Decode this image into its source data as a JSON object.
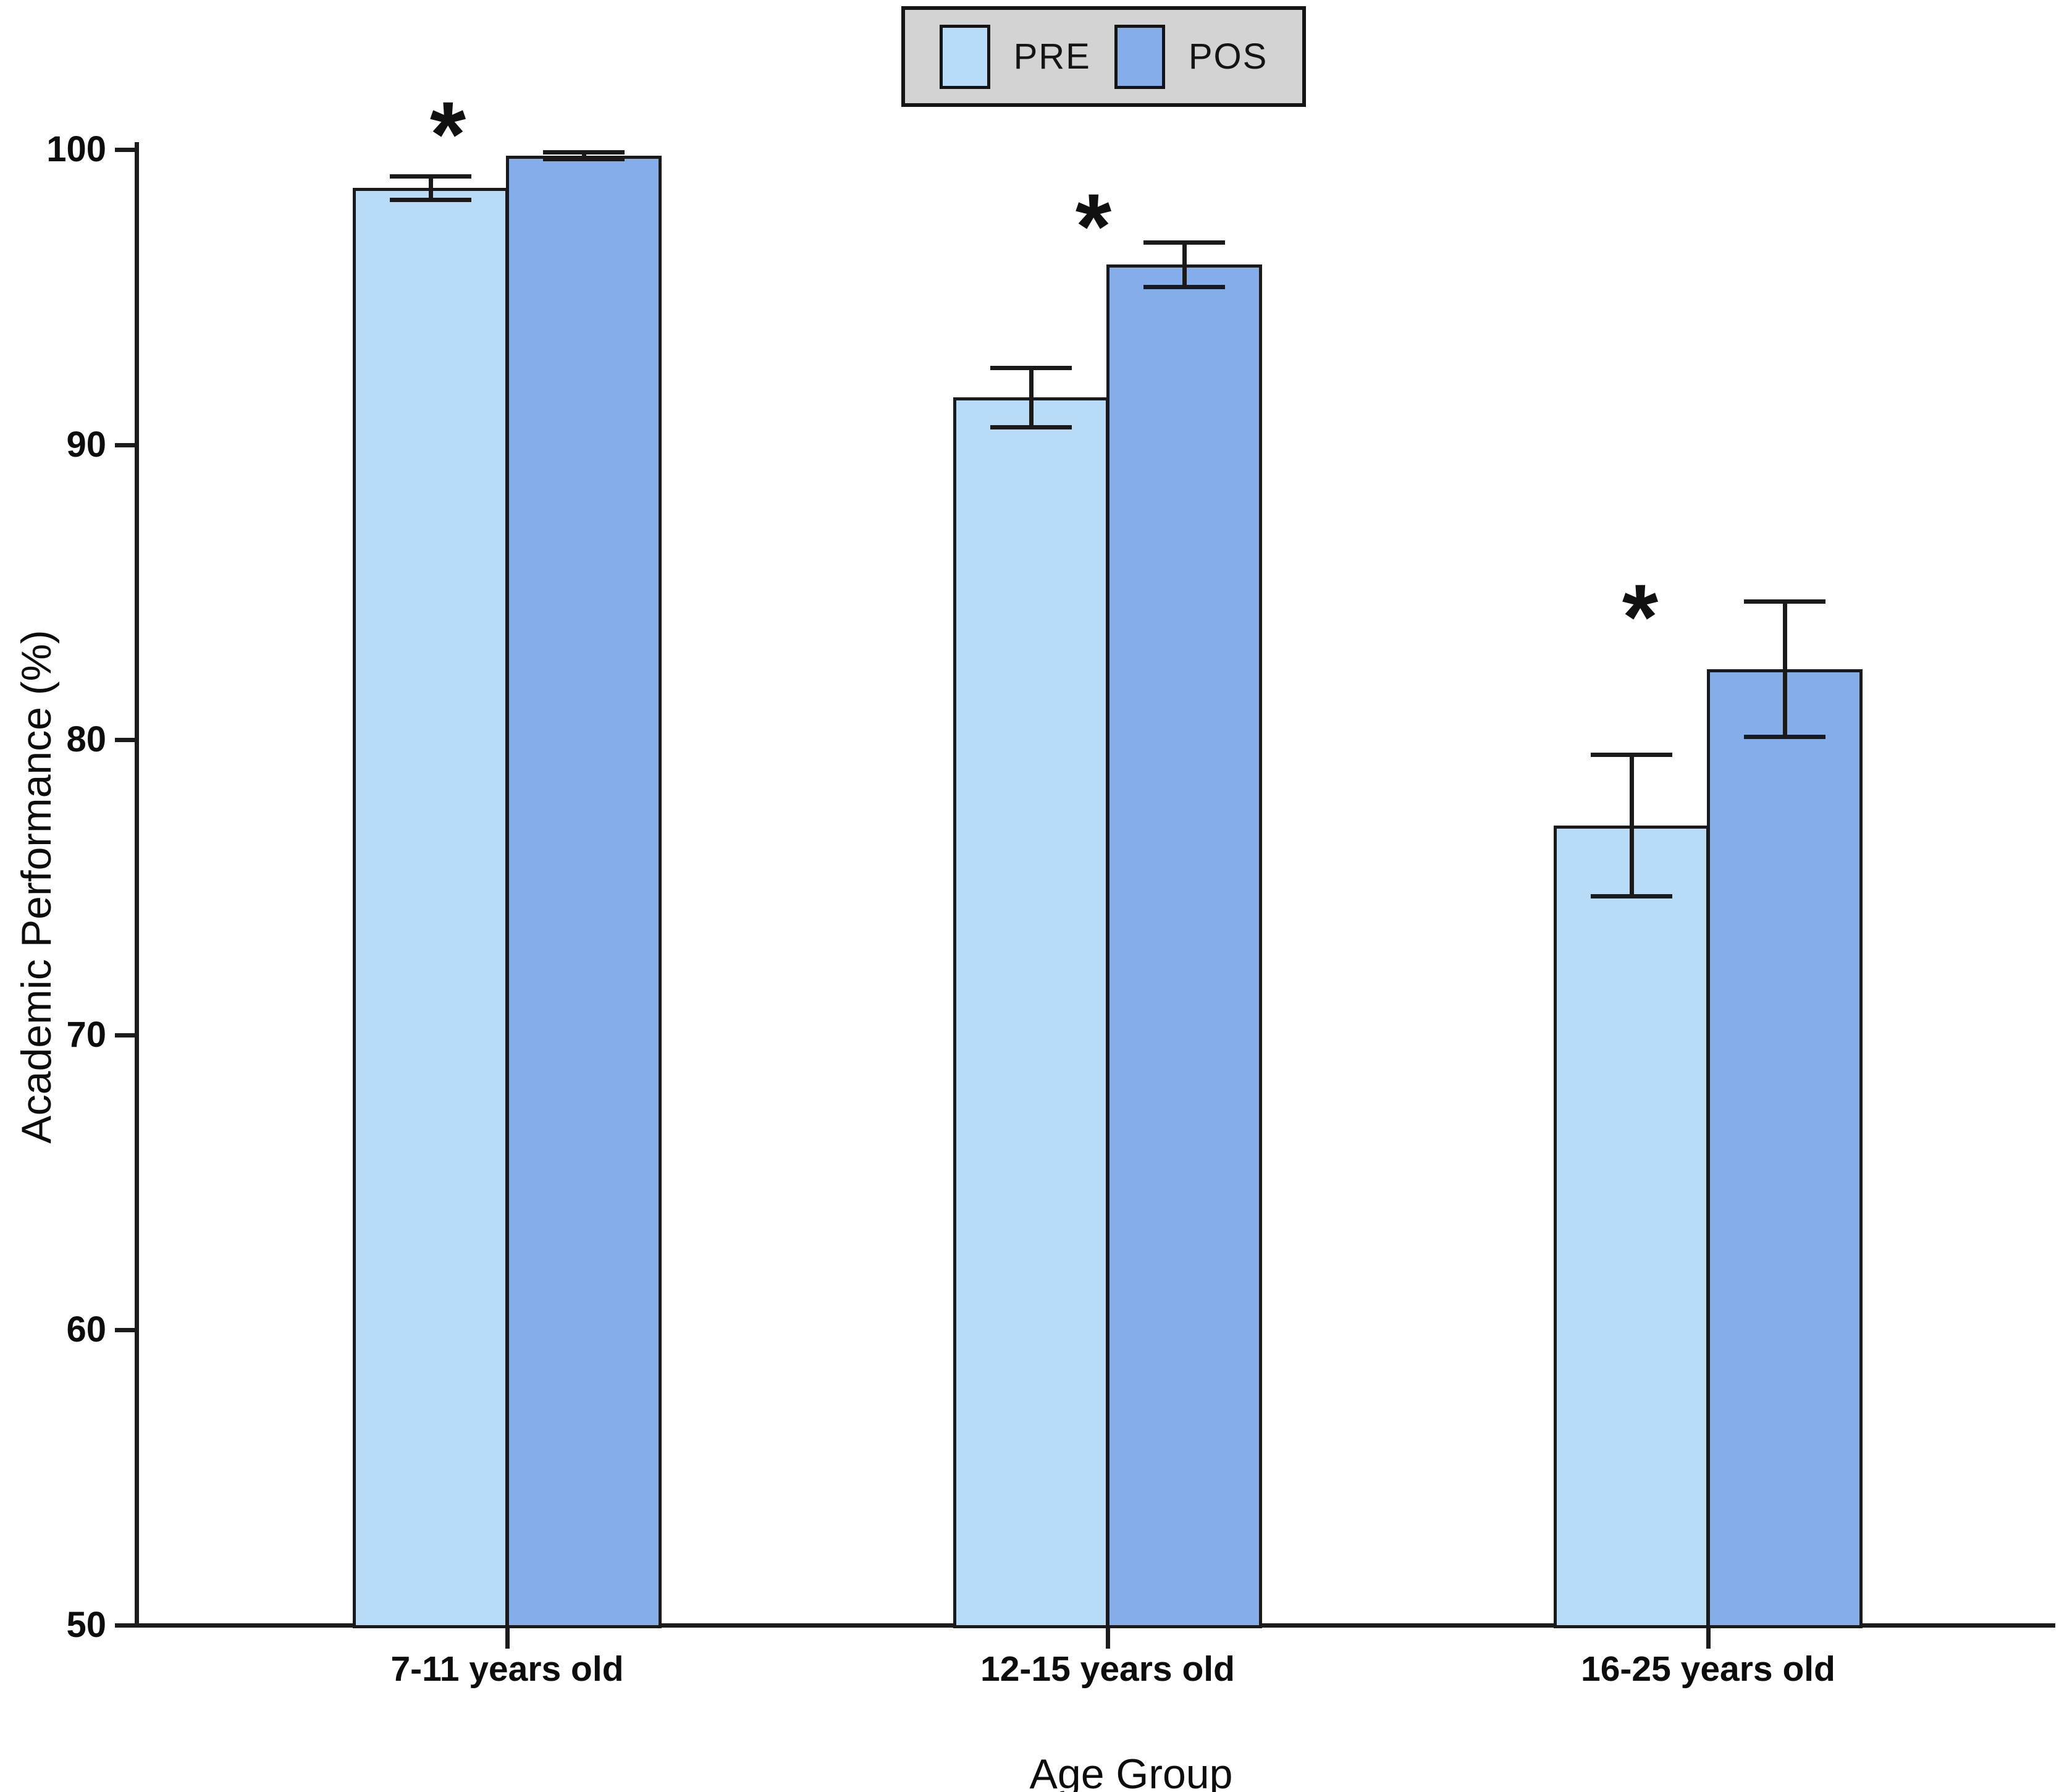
{
  "figure": {
    "background": "#ffffff"
  },
  "legend": {
    "background": "#d3d3d3",
    "border_color": "#141414",
    "items": [
      {
        "label": "PRE",
        "color": "#b8dcf7"
      },
      {
        "label": "POS",
        "color": "#84adea"
      }
    ]
  },
  "chart_data": {
    "type": "bar",
    "title": "",
    "xlabel": "Age Group",
    "ylabel": "Academic Performance (%)",
    "categories": [
      "7-11 years old",
      "12-15 years old",
      "16-25 years old"
    ],
    "series": [
      {
        "name": "PRE",
        "color": "#b8dcf7",
        "values": [
          98.7,
          91.6,
          77.1
        ],
        "errors": [
          0.4,
          1.0,
          2.4
        ]
      },
      {
        "name": "POS",
        "color": "#84adea",
        "values": [
          99.8,
          96.1,
          82.4
        ],
        "errors": [
          0.12,
          0.75,
          2.3
        ]
      }
    ],
    "ylim": [
      50,
      101.5
    ],
    "yticks": [
      50,
      60,
      70,
      80,
      90,
      100
    ],
    "grid": false,
    "legend_position": "top-center",
    "significance": {
      "symbol": "*",
      "groups": [
        true,
        true,
        true
      ]
    },
    "bar_border_color": "#1a1a1a",
    "error_bar_color": "#1a1a1a",
    "axis_color": "#1c1c1c"
  }
}
